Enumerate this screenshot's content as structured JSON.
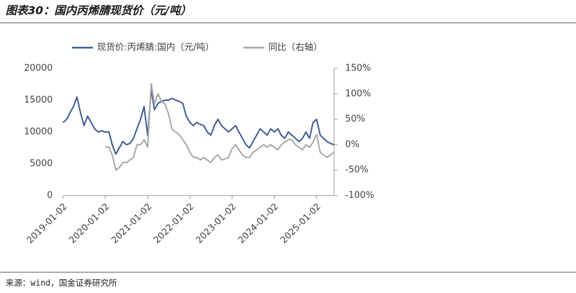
{
  "chart_data": {
    "type": "line",
    "title": "图表30：国内丙烯腈现货价（元/吨）",
    "source": "来源：wind，国金证券研究所",
    "x": [
      "2019-01-02",
      "2019-02-02",
      "2019-03-02",
      "2019-04-02",
      "2019-05-02",
      "2019-06-02",
      "2019-07-02",
      "2019-08-02",
      "2019-09-02",
      "2019-10-02",
      "2019-11-02",
      "2019-12-02",
      "2020-01-02",
      "2020-02-02",
      "2020-03-02",
      "2020-04-02",
      "2020-05-02",
      "2020-06-02",
      "2020-07-02",
      "2020-08-02",
      "2020-09-02",
      "2020-10-02",
      "2020-11-02",
      "2020-12-02",
      "2021-01-02",
      "2021-02-02",
      "2021-03-02",
      "2021-04-02",
      "2021-05-02",
      "2021-06-02",
      "2021-07-02",
      "2021-08-02",
      "2021-09-02",
      "2021-10-02",
      "2021-11-02",
      "2021-12-02",
      "2022-01-02",
      "2022-02-02",
      "2022-03-02",
      "2022-04-02",
      "2022-05-02",
      "2022-06-02",
      "2022-07-02",
      "2022-08-02",
      "2022-09-02",
      "2022-10-02",
      "2022-11-02",
      "2022-12-02",
      "2023-01-02",
      "2023-02-02",
      "2023-03-02",
      "2023-04-02",
      "2023-05-02",
      "2023-06-02",
      "2023-07-02",
      "2023-08-02",
      "2023-09-02",
      "2023-10-02",
      "2023-11-02",
      "2023-12-02",
      "2024-01-02",
      "2024-02-02",
      "2024-03-02",
      "2024-04-02",
      "2024-05-02",
      "2024-06-02",
      "2024-07-02",
      "2024-08-02",
      "2024-09-02",
      "2024-10-02",
      "2024-11-02",
      "2024-12-02",
      "2025-01-02",
      "2025-02-02",
      "2025-03-02",
      "2025-04-02",
      "2025-05-02",
      "2025-06-02"
    ],
    "series": [
      {
        "name": "现货价:丙烯腈:国内（元/吨）",
        "color": "#3c5a96",
        "values": [
          11500,
          12000,
          13000,
          14000,
          15500,
          13000,
          11000,
          12500,
          11500,
          10500,
          10000,
          10200,
          10000,
          10000,
          8000,
          6500,
          7500,
          8500,
          8000,
          8200,
          9000,
          10500,
          12000,
          14000,
          9500,
          16600,
          13500,
          14500,
          14800,
          15000,
          15000,
          15300,
          15000,
          14800,
          14500,
          12500,
          11500,
          11000,
          11500,
          11200,
          11000,
          10000,
          9500,
          11000,
          12000,
          11000,
          10500,
          10000,
          10500,
          11000,
          10000,
          9000,
          8000,
          7500,
          8500,
          9500,
          10500,
          10000,
          9500,
          10500,
          10000,
          10500,
          9500,
          9000,
          10000,
          9500,
          9000,
          8500,
          9000,
          10000,
          9000,
          11500,
          12000,
          9500,
          9000,
          8500,
          8200,
          8000
        ]
      },
      {
        "name": "同比（右轴）",
        "color": "#a6a6a6",
        "axis": "y2",
        "values": [
          null,
          null,
          null,
          null,
          null,
          null,
          null,
          null,
          null,
          null,
          null,
          null,
          -4,
          -5,
          -20,
          -50,
          -45,
          -35,
          -35,
          -30,
          -25,
          0,
          0,
          10,
          -5,
          120,
          80,
          100,
          85,
          80,
          60,
          30,
          25,
          20,
          10,
          0,
          -15,
          -25,
          -25,
          -30,
          -25,
          -30,
          -35,
          -25,
          -20,
          -30,
          -28,
          -25,
          -8,
          0,
          -10,
          -20,
          -25,
          -25,
          -15,
          -10,
          -5,
          0,
          -5,
          0,
          -5,
          -10,
          0,
          5,
          10,
          10,
          0,
          -5,
          -10,
          0,
          -5,
          5,
          20,
          -15,
          -20,
          -25,
          -20,
          -15
        ]
      }
    ],
    "xlim": [
      "2019-01-02",
      "2025-06-02"
    ],
    "xticks": [
      "2019-01-02",
      "2020-01-02",
      "2021-01-02",
      "2022-01-02",
      "2023-01-02",
      "2024-01-02",
      "2025-01-02"
    ],
    "ylim": [
      0,
      20000
    ],
    "yticks": [
      0,
      5000,
      10000,
      15000,
      20000
    ],
    "y2lim": [
      -100,
      150
    ],
    "y2ticks": [
      {
        "value": -100,
        "label": "-100%"
      },
      {
        "value": -50,
        "label": "-50%"
      },
      {
        "value": 0,
        "label": "0%"
      },
      {
        "value": 50,
        "label": "50%"
      },
      {
        "value": 100,
        "label": "100%"
      },
      {
        "value": 150,
        "label": "150%"
      }
    ],
    "grid": false
  }
}
